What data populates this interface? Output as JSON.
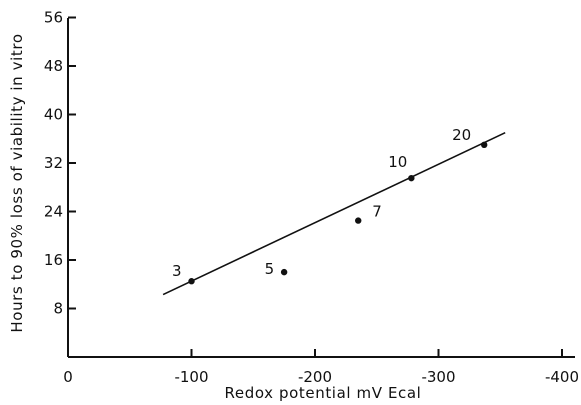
{
  "chart_data": {
    "type": "scatter",
    "title": "",
    "xlabel": "Redox potential mV Ecal",
    "ylabel": "Hours to 90% loss of viability in vitro",
    "xlim": [
      0,
      -400
    ],
    "ylim": [
      0,
      56
    ],
    "x_ticks": [
      {
        "value": 0,
        "label": "0"
      },
      {
        "value": -100,
        "label": "-100"
      },
      {
        "value": -200,
        "label": "-200"
      },
      {
        "value": -300,
        "label": "-300"
      },
      {
        "value": -400,
        "label": "-400"
      }
    ],
    "y_ticks": [
      {
        "value": 8,
        "label": "8"
      },
      {
        "value": 16,
        "label": "16"
      },
      {
        "value": 24,
        "label": "24"
      },
      {
        "value": 32,
        "label": "32"
      },
      {
        "value": 40,
        "label": "40"
      },
      {
        "value": 48,
        "label": "48"
      },
      {
        "value": 56,
        "label": "56"
      }
    ],
    "points": [
      {
        "x": -100,
        "y": 12.5,
        "label": "3"
      },
      {
        "x": -175,
        "y": 14,
        "label": "5"
      },
      {
        "x": -235,
        "y": 22.5,
        "label": "7"
      },
      {
        "x": -278,
        "y": 29.5,
        "label": "10"
      },
      {
        "x": -337,
        "y": 35,
        "label": "20"
      }
    ],
    "fit_line": {
      "x": [
        -77,
        -354
      ],
      "y": [
        10.3,
        37
      ]
    },
    "grid": false,
    "legend": "none"
  }
}
